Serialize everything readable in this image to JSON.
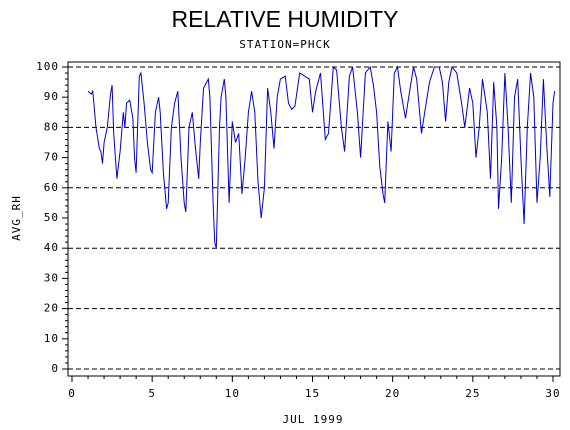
{
  "chart_data": {
    "type": "line",
    "title": "RELATIVE HUMIDITY",
    "subtitle": "STATION=PHCK",
    "x_label": "JUL 1999",
    "y_label": "AVG_RH",
    "xlim": [
      0,
      30
    ],
    "ylim": [
      0,
      100
    ],
    "xticks": [
      0,
      5,
      10,
      15,
      20,
      25,
      30
    ],
    "yticks": [
      0,
      10,
      20,
      30,
      40,
      50,
      60,
      70,
      80,
      90,
      100
    ],
    "ygrid": [
      0,
      20,
      40,
      60,
      80,
      100
    ],
    "grid_style": "dashed",
    "series": [
      {
        "color": "#0000cc",
        "x": [
          1.0,
          1.2,
          1.3,
          1.5,
          1.7,
          1.8,
          1.9,
          2.0,
          2.2,
          2.4,
          2.5,
          2.6,
          2.8,
          3.0,
          3.2,
          3.3,
          3.4,
          3.6,
          3.8,
          3.9,
          4.0,
          4.2,
          4.3,
          4.5,
          4.7,
          4.9,
          5.0,
          5.2,
          5.4,
          5.5,
          5.7,
          5.9,
          6.0,
          6.2,
          6.4,
          6.6,
          6.8,
          7.0,
          7.1,
          7.3,
          7.5,
          7.7,
          7.9,
          8.0,
          8.2,
          8.4,
          8.5,
          8.6,
          8.8,
          8.9,
          9.0,
          9.2,
          9.3,
          9.5,
          9.6,
          9.8,
          10.0,
          10.2,
          10.4,
          10.6,
          10.8,
          11.0,
          11.2,
          11.4,
          11.6,
          11.8,
          12.0,
          12.2,
          12.4,
          12.6,
          12.8,
          13.0,
          13.3,
          13.5,
          13.7,
          13.9,
          14.2,
          14.5,
          14.8,
          15.0,
          15.2,
          15.5,
          15.8,
          16.0,
          16.3,
          16.5,
          16.8,
          17.0,
          17.3,
          17.5,
          17.8,
          18.0,
          18.3,
          18.6,
          18.8,
          19.0,
          19.2,
          19.4,
          19.5,
          19.7,
          19.9,
          20.1,
          20.3,
          20.5,
          20.8,
          21.0,
          21.3,
          21.5,
          21.8,
          22.0,
          22.3,
          22.6,
          22.9,
          23.1,
          23.3,
          23.5,
          23.7,
          24.0,
          24.3,
          24.5,
          24.8,
          25.0,
          25.2,
          25.4,
          25.6,
          25.9,
          26.1,
          26.3,
          26.5,
          26.6,
          26.8,
          27.0,
          27.2,
          27.4,
          27.6,
          27.8,
          28.0,
          28.2,
          28.4,
          28.6,
          28.8,
          29.0,
          29.2,
          29.4,
          29.6,
          29.8,
          30.0,
          30.1
        ],
        "values": [
          92,
          91,
          92,
          80,
          73,
          72,
          68,
          75,
          80,
          91,
          94,
          78,
          63,
          72,
          85,
          80,
          88,
          89,
          83,
          70,
          65,
          97,
          98,
          88,
          75,
          66,
          65,
          85,
          90,
          85,
          65,
          53,
          55,
          80,
          88,
          92,
          70,
          55,
          52,
          80,
          85,
          73,
          63,
          75,
          93,
          95,
          96,
          90,
          55,
          42,
          40,
          80,
          90,
          96,
          90,
          55,
          82,
          75,
          78,
          58,
          70,
          85,
          92,
          85,
          62,
          50,
          60,
          93,
          85,
          73,
          90,
          96,
          97,
          88,
          86,
          87,
          98,
          97,
          96,
          85,
          92,
          98,
          76,
          78,
          100,
          99,
          80,
          72,
          97,
          100,
          85,
          70,
          98,
          100,
          94,
          85,
          67,
          58,
          55,
          82,
          72,
          98,
          100,
          92,
          83,
          90,
          100,
          96,
          78,
          85,
          95,
          100,
          100,
          95,
          82,
          95,
          100,
          98,
          88,
          80,
          93,
          88,
          70,
          80,
          96,
          85,
          63,
          95,
          80,
          53,
          70,
          98,
          80,
          55,
          90,
          96,
          70,
          48,
          80,
          98,
          90,
          55,
          70,
          96,
          75,
          57,
          88,
          92
        ]
      }
    ]
  }
}
